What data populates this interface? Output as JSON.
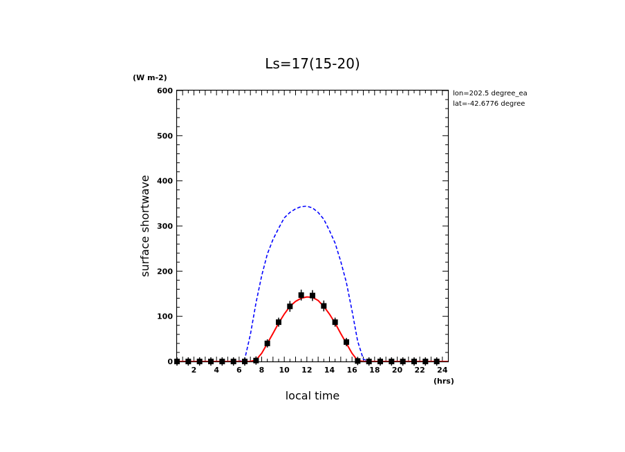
{
  "chart_data": {
    "type": "line",
    "title": "Ls=17(15-20)",
    "xlabel": "local time",
    "xunit": "(hrs)",
    "ylabel": "surface shortwave",
    "yunit": "(W m-2)",
    "annotation_lines": [
      "lon=202.5 degree_ea",
      "lat=-42.6776 degree"
    ],
    "xlim": [
      0.5,
      24.5
    ],
    "ylim": [
      0,
      600
    ],
    "x_ticks": [
      2,
      4,
      6,
      8,
      10,
      12,
      14,
      16,
      18,
      20,
      22,
      24
    ],
    "y_ticks": [
      0,
      100,
      200,
      300,
      400,
      500,
      600
    ],
    "grid": false,
    "series": [
      {
        "style": "dashed",
        "color": "#0000ff",
        "x": [
          0.5,
          1,
          2,
          3,
          4,
          5,
          6,
          6.5,
          7,
          7.5,
          8,
          8.5,
          9,
          9.5,
          10,
          10.5,
          11,
          11.5,
          12,
          12.5,
          13,
          13.5,
          14,
          14.5,
          15,
          15.5,
          16,
          16.5,
          17,
          17.5,
          18,
          19,
          20,
          21,
          22,
          23,
          24,
          24.5
        ],
        "y": [
          0,
          0,
          0,
          0,
          0,
          0,
          0,
          5,
          60,
          130,
          190,
          238,
          270,
          295,
          318,
          330,
          338,
          343,
          344,
          340,
          330,
          315,
          290,
          262,
          222,
          175,
          112,
          45,
          5,
          0,
          0,
          0,
          0,
          0,
          0,
          0,
          0,
          0
        ]
      },
      {
        "style": "solid",
        "color": "#ff0000",
        "x": [
          0.5,
          1,
          2,
          3,
          4,
          5,
          6,
          7,
          7.5,
          8,
          8.5,
          9,
          9.5,
          10,
          10.5,
          11,
          11.5,
          12,
          12.5,
          13,
          13.5,
          14,
          14.5,
          15,
          15.5,
          16,
          16.5,
          17,
          17.5,
          18,
          19,
          20,
          21,
          22,
          23,
          24,
          24.5
        ],
        "y": [
          0,
          0,
          0,
          0,
          0,
          0,
          0,
          0,
          3,
          18,
          40,
          62,
          85,
          105,
          122,
          133,
          140,
          143,
          142,
          135,
          122,
          105,
          85,
          62,
          40,
          18,
          2,
          0,
          0,
          0,
          0,
          0,
          0,
          0,
          0,
          0,
          0
        ]
      }
    ],
    "points": {
      "marker": "square-with-errorbar",
      "color": "#000000",
      "x": [
        0.5,
        1.5,
        2.5,
        3.5,
        4.5,
        5.5,
        6.5,
        7.5,
        8.5,
        9.5,
        10.5,
        11.5,
        12.5,
        13.5,
        14.5,
        15.5,
        16.5,
        17.5,
        18.5,
        19.5,
        20.5,
        21.5,
        22.5,
        23.5
      ],
      "y": [
        0,
        0,
        0,
        0,
        0,
        0,
        0,
        2,
        40,
        87,
        122,
        147,
        146,
        123,
        87,
        43,
        1,
        0,
        0,
        0,
        0,
        0,
        0,
        0
      ],
      "err": [
        0,
        0,
        0,
        0,
        0,
        0,
        0,
        4,
        8,
        10,
        12,
        12,
        12,
        12,
        10,
        8,
        4,
        0,
        0,
        0,
        0,
        0,
        0,
        0
      ]
    }
  }
}
